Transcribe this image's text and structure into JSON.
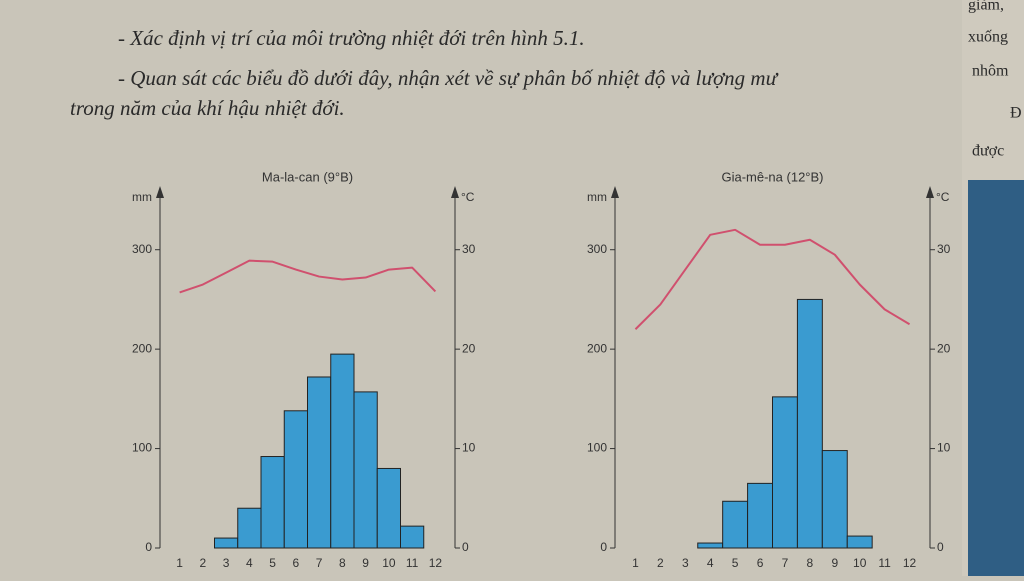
{
  "text": [
    "- Xác định vị trí của môi trường nhiệt đới trên hình 5.1.",
    "- Quan sát các biểu đồ dưới đây, nhận xét về sự phân bố nhiệt độ và lượng mư",
    "trong năm của khí hậu nhiệt đới."
  ],
  "margin": [
    "giảm,",
    "xuống",
    "nhôm",
    "Đ",
    "được"
  ],
  "chart_data": [
    {
      "type": "climate",
      "title": "Ma-la-can (9°B)",
      "y_label": "mm",
      "y2_label": "°C",
      "categories": [
        "1",
        "2",
        "3",
        "4",
        "5",
        "6",
        "7",
        "8",
        "9",
        "10",
        "11",
        "12"
      ],
      "series": [
        {
          "color": "#3a9bd0",
          "values": [
            0,
            0,
            10,
            40,
            92,
            138,
            172,
            195,
            157,
            80,
            22,
            0
          ]
        },
        {
          "color": "#d0506e",
          "axis": "y2",
          "values": [
            25.7,
            26.5,
            27.7,
            28.9,
            28.8,
            28,
            27.3,
            27,
            27.2,
            28,
            28.2,
            25.8
          ]
        }
      ],
      "ylim": [
        0,
        350
      ],
      "yticks": [
        0,
        100,
        200,
        300
      ],
      "y2lim": [
        0,
        35
      ],
      "y2ticks": [
        0,
        10,
        20,
        30
      ]
    },
    {
      "type": "climate",
      "title": "Gia-mê-na (12°B)",
      "y_label": "mm",
      "y2_label": "°C",
      "categories": [
        "1",
        "2",
        "3",
        "4",
        "5",
        "6",
        "7",
        "8",
        "9",
        "10",
        "11",
        "12"
      ],
      "series": [
        {
          "color": "#3a9bd0",
          "values": [
            0,
            0,
            0,
            5,
            47,
            65,
            152,
            250,
            98,
            12,
            0,
            0
          ]
        },
        {
          "color": "#d0506e",
          "axis": "y2",
          "values": [
            22,
            24.5,
            28,
            31.5,
            32,
            30.5,
            30.5,
            31,
            29.5,
            26.5,
            24,
            22.5
          ]
        }
      ],
      "ylim": [
        0,
        350
      ],
      "yticks": [
        0,
        100,
        200,
        300
      ],
      "y2lim": [
        0,
        35
      ],
      "y2ticks": [
        0,
        10,
        20,
        30
      ]
    }
  ]
}
